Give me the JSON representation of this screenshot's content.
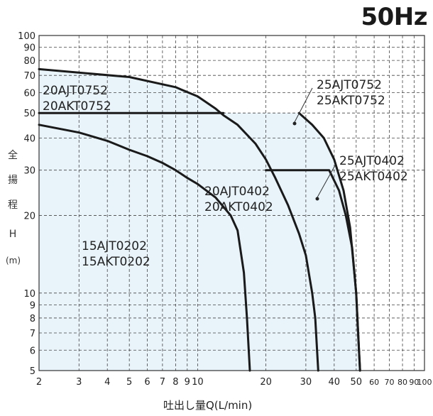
{
  "chart_data": {
    "type": "line",
    "title": "50Hz",
    "ylabel_chars": [
      "全",
      "揚",
      "程",
      "H",
      "(m)"
    ],
    "xlabel": "吐出し量Q(L/min)",
    "x_scale": "log",
    "y_scale": "log",
    "xlim": [
      2,
      100
    ],
    "ylim": [
      5,
      100
    ],
    "x_ticks": [
      2,
      3,
      4,
      5,
      6,
      7,
      8,
      9,
      10,
      20,
      30,
      40,
      50,
      60,
      70,
      80,
      90,
      100
    ],
    "x_tick_labels": [
      "2",
      "3",
      "4",
      "5",
      "6",
      "7",
      "8",
      "9",
      "10",
      "20",
      "30",
      "40",
      "50",
      "60",
      "70",
      "80",
      "90",
      "100"
    ],
    "y_ticks": [
      5,
      6,
      7,
      8,
      9,
      10,
      20,
      30,
      40,
      50,
      60,
      70,
      80,
      90,
      100
    ],
    "y_tick_labels": [
      "5",
      "6",
      "7",
      "8",
      "9",
      "10",
      "20",
      "30",
      "40",
      "50",
      "60",
      "70",
      "80",
      "90",
      "100"
    ],
    "grid": true,
    "series": [
      {
        "name_lines": [
          "15AJT0202",
          "15AKT0202"
        ],
        "points": [
          [
            2,
            45
          ],
          [
            3,
            42
          ],
          [
            4,
            39
          ],
          [
            5,
            36
          ],
          [
            6,
            34
          ],
          [
            7,
            32
          ],
          [
            8,
            30
          ],
          [
            9,
            28
          ],
          [
            10,
            26.5
          ],
          [
            12,
            23.5
          ],
          [
            14,
            20
          ],
          [
            15,
            17.5
          ],
          [
            16,
            12
          ],
          [
            16.5,
            8
          ],
          [
            17,
            5
          ]
        ]
      },
      {
        "name_lines": [
          "20AJT0402",
          "20AKT0402"
        ],
        "points": [
          [
            2,
            74
          ],
          [
            5,
            69
          ],
          [
            8,
            63
          ],
          [
            10,
            58
          ],
          [
            12,
            52
          ],
          [
            13,
            49
          ],
          [
            15,
            45
          ],
          [
            18,
            38
          ],
          [
            20,
            33
          ],
          [
            22,
            28
          ],
          [
            25,
            22
          ],
          [
            28,
            17
          ],
          [
            30,
            14
          ],
          [
            32,
            10
          ],
          [
            33,
            8
          ],
          [
            34,
            5
          ]
        ]
      },
      {
        "name_lines": [
          "20AJT0752",
          "20AKT0752"
        ],
        "points": [
          [
            2,
            50
          ],
          [
            13,
            50
          ]
        ]
      },
      {
        "name_lines": [
          "25AJT0402",
          "25AKT0402"
        ],
        "points": [
          [
            20,
            30
          ],
          [
            38,
            30
          ],
          [
            42,
            25
          ],
          [
            45,
            20
          ],
          [
            48,
            15
          ],
          [
            50,
            10
          ],
          [
            51,
            7
          ],
          [
            52,
            5
          ]
        ]
      },
      {
        "name_lines": [
          "25AJT0752",
          "25AKT0752"
        ],
        "points": [
          [
            28,
            50
          ],
          [
            32,
            45
          ],
          [
            36,
            40
          ],
          [
            40,
            33
          ],
          [
            44,
            25
          ],
          [
            47,
            18
          ],
          [
            50,
            10
          ],
          [
            51,
            7
          ],
          [
            52,
            5
          ]
        ]
      }
    ],
    "shaded_region": [
      [
        2,
        74
      ],
      [
        5,
        69
      ],
      [
        8,
        63
      ],
      [
        10,
        58
      ],
      [
        12,
        52
      ],
      [
        13,
        50
      ],
      [
        28,
        50
      ],
      [
        32,
        45
      ],
      [
        36,
        40
      ],
      [
        40,
        33
      ],
      [
        44,
        25
      ],
      [
        47,
        18
      ],
      [
        50,
        10
      ],
      [
        51,
        7
      ],
      [
        52,
        5
      ],
      [
        2,
        5
      ]
    ],
    "shade_color": "#e8f4fa"
  }
}
